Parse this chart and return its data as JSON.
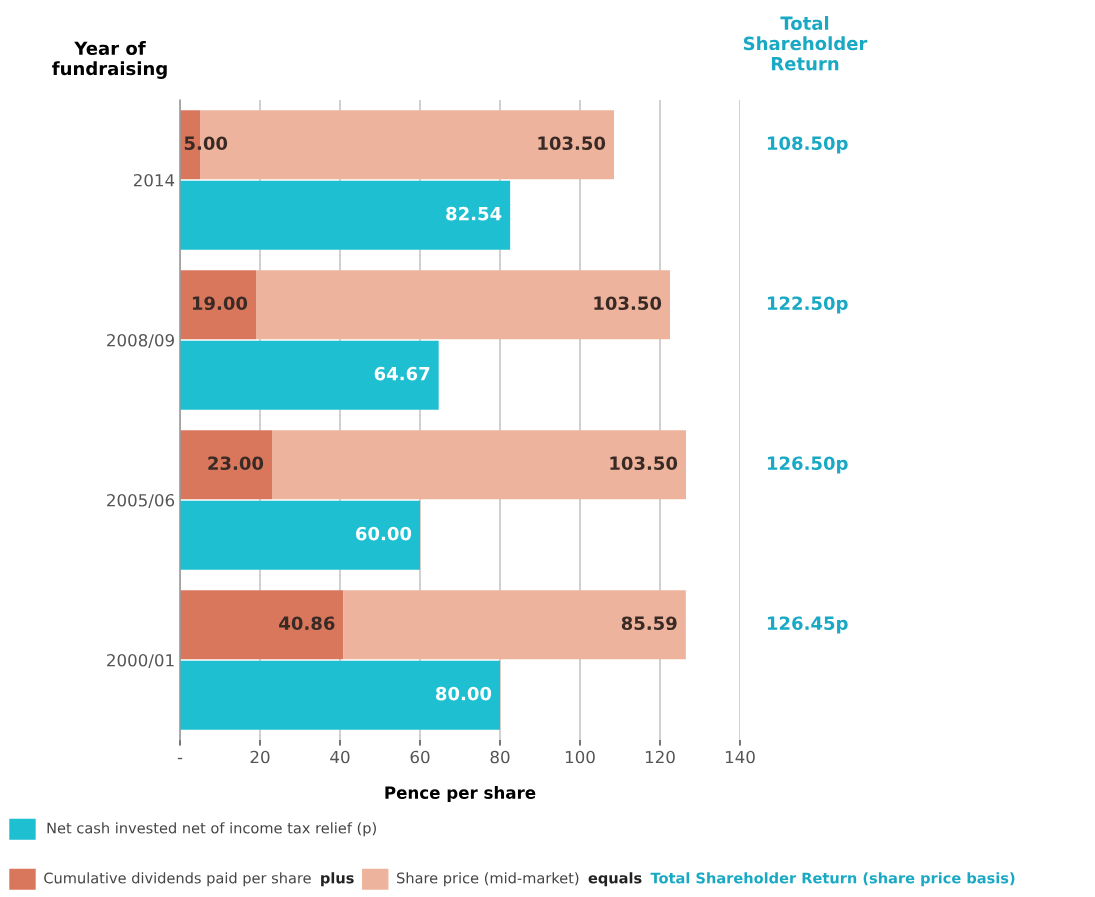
{
  "chart_data": [
    {
      "type": "bar",
      "orientation": "horizontal",
      "stacked": true,
      "categories": [
        "2014",
        "2008/09",
        "2005/06",
        "2000/01"
      ],
      "series": [
        {
          "name": "Cumulative dividends paid per share",
          "color": "#d9775c",
          "values": [
            5.0,
            19.0,
            23.0,
            40.86
          ],
          "value_labels": [
            "5.00",
            "19.00",
            "23.00",
            "40.86"
          ]
        },
        {
          "name": "Share price (mid-market)",
          "color": "#eeb39d",
          "values": [
            103.5,
            103.5,
            103.5,
            85.59
          ],
          "value_labels": [
            "103.50",
            "103.50",
            "103.50",
            "85.59"
          ]
        }
      ],
      "xlabel": "Pence per share",
      "ylabel": "Year of fundraising",
      "xlim": [
        0,
        140
      ],
      "xticks": [
        {
          "value": 0,
          "label": "-"
        },
        20,
        40,
        60,
        80,
        100,
        120,
        140
      ],
      "grid": "x",
      "legend": "bottom",
      "annotations": [
        "Total Shareholder Return",
        "108.50p",
        "122.50p",
        "126.50p",
        "126.45p",
        "plus",
        "equals",
        "Total Shareholder Return (share price basis)"
      ]
    },
    {
      "type": "bar",
      "orientation": "horizontal",
      "categories": [
        "2014",
        "2008/09",
        "2005/06",
        "2000/01"
      ],
      "series": [
        {
          "name": "Net cash invested net of income tax relief (p)",
          "color": "#1fbfd2",
          "values": [
            82.54,
            64.67,
            60.0,
            80.0
          ],
          "value_labels": [
            "82.54",
            "64.67",
            "60.00",
            "80.00"
          ]
        }
      ],
      "xlim": [
        0,
        140
      ],
      "xticks": [
        0,
        20,
        40,
        60,
        80,
        100,
        120,
        140
      ],
      "tick_labels": false,
      "legend": "bottom"
    }
  ]
}
